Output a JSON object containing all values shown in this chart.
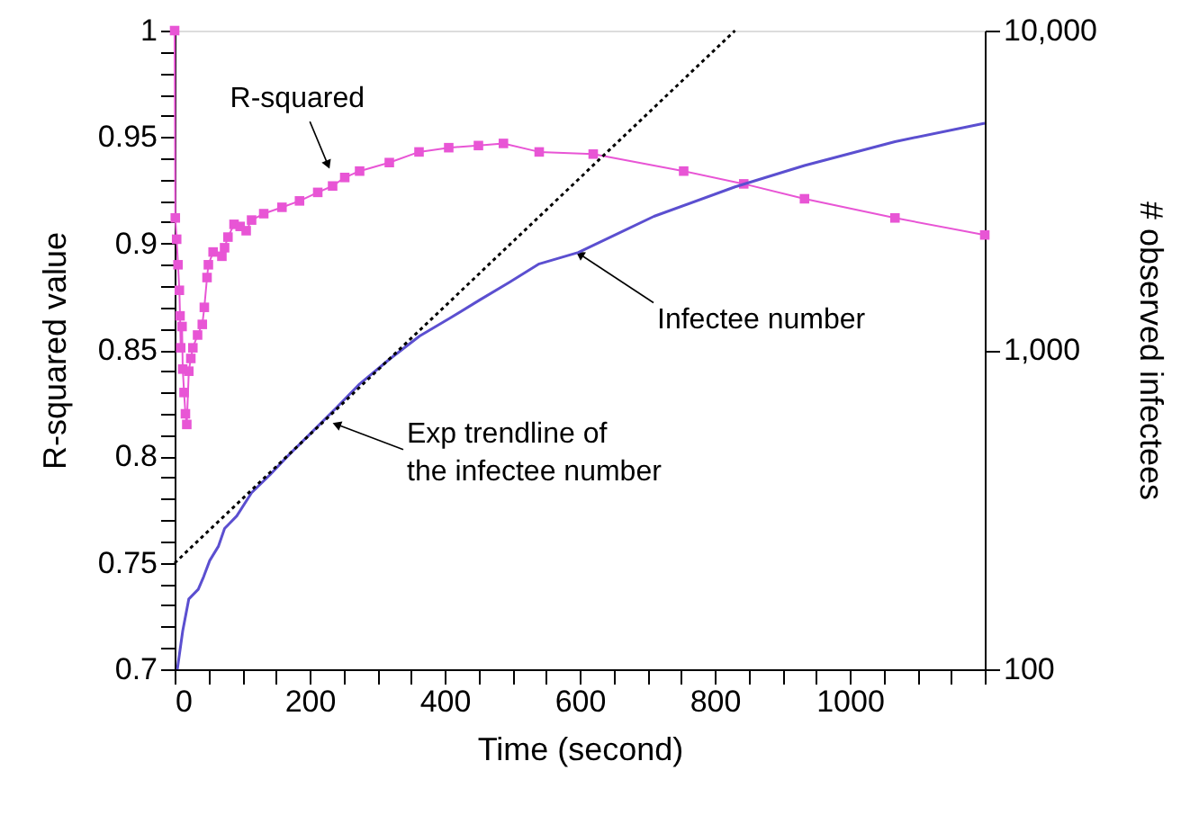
{
  "chart_data": {
    "type": "line",
    "xlabel": "Time (second)",
    "ylabel": "R-squared value",
    "y2label": "# observed infectees",
    "xlim": [
      0,
      1200
    ],
    "xticks": [
      0,
      {
        "value": 50,
        "label": null
      },
      {
        "value": 100,
        "label": null
      },
      {
        "value": 150,
        "label": null
      },
      200,
      {
        "value": 250,
        "label": null
      },
      {
        "value": 300,
        "label": null
      },
      {
        "value": 350,
        "label": null
      },
      400,
      {
        "value": 450,
        "label": null
      },
      {
        "value": 500,
        "label": null
      },
      {
        "value": 550,
        "label": null
      },
      600,
      {
        "value": 650,
        "label": null
      },
      {
        "value": 700,
        "label": null
      },
      {
        "value": 750,
        "label": null
      },
      800,
      {
        "value": 850,
        "label": null
      },
      {
        "value": 900,
        "label": null
      },
      {
        "value": 950,
        "label": null
      },
      1000,
      {
        "value": 1050,
        "label": null
      },
      {
        "value": 1100,
        "label": null
      },
      {
        "value": 1150,
        "label": null
      },
      {
        "value": 1200,
        "label": null
      }
    ],
    "ylim": [
      0.7,
      1
    ],
    "yticks": [
      0.7,
      {
        "value": 0.71,
        "label": null
      },
      {
        "value": 0.72,
        "label": null
      },
      {
        "value": 0.73,
        "label": null
      },
      {
        "value": 0.74,
        "label": null
      },
      0.75,
      {
        "value": 0.76,
        "label": null
      },
      {
        "value": 0.77,
        "label": null
      },
      {
        "value": 0.78,
        "label": null
      },
      {
        "value": 0.79,
        "label": null
      },
      0.8,
      {
        "value": 0.81,
        "label": null
      },
      {
        "value": 0.82,
        "label": null
      },
      {
        "value": 0.83,
        "label": null
      },
      {
        "value": 0.84,
        "label": null
      },
      0.85,
      {
        "value": 0.86,
        "label": null
      },
      {
        "value": 0.87,
        "label": null
      },
      {
        "value": 0.88,
        "label": null
      },
      {
        "value": 0.89,
        "label": null
      },
      0.9,
      {
        "value": 0.91,
        "label": null
      },
      {
        "value": 0.92,
        "label": null
      },
      {
        "value": 0.93,
        "label": null
      },
      {
        "value": 0.94,
        "label": null
      },
      0.95,
      {
        "value": 0.96,
        "label": null
      },
      {
        "value": 0.97,
        "label": null
      },
      {
        "value": 0.98,
        "label": null
      },
      {
        "value": 0.99,
        "label": null
      },
      1
    ],
    "y2lim": [
      100,
      10000
    ],
    "y2ticks": [
      100,
      {
        "value": 1000,
        "label": "1,000"
      },
      {
        "value": 10000,
        "label": "10,000"
      }
    ],
    "log": "y2",
    "grid": false,
    "series": [
      {
        "marker": "square",
        "line_style": "solid",
        "color": "#e855d5",
        "x": [
          0,
          1,
          3,
          5,
          7,
          8,
          9,
          11,
          12,
          14,
          16,
          18,
          21,
          24,
          27,
          34,
          41,
          44,
          48,
          50,
          57,
          70,
          74,
          79,
          88,
          97,
          106,
          114,
          132,
          159,
          185,
          212,
          234,
          252,
          274,
          318,
          362,
          406,
          450,
          487,
          540,
          620,
          754,
          843,
          933,
          1067,
          1200
        ],
        "values": [
          1.0,
          0.912,
          0.902,
          0.89,
          0.878,
          0.866,
          0.851,
          0.861,
          0.841,
          0.83,
          0.82,
          0.815,
          0.84,
          0.846,
          0.851,
          0.857,
          0.862,
          0.87,
          0.884,
          0.89,
          0.896,
          0.894,
          0.898,
          0.903,
          0.909,
          0.908,
          0.906,
          0.911,
          0.914,
          0.917,
          0.92,
          0.924,
          0.927,
          0.931,
          0.934,
          0.938,
          0.943,
          0.945,
          0.946,
          0.947,
          0.943,
          0.942,
          0.934,
          0.928,
          0.921,
          0.912,
          0.904
        ]
      },
      {
        "marker": "none",
        "line_style": "solid",
        "axis": "y2",
        "color": "#5b4fd0",
        "x": [
          4,
          12,
          21,
          35,
          43,
          52,
          65,
          74,
          92,
          114,
          141,
          167,
          203,
          239,
          274,
          318,
          363,
          407,
          451,
          496,
          540,
          598,
          710,
          830,
          933,
          1067,
          1200
        ],
        "values": [
          100,
          132,
          166,
          178,
          195,
          219,
          243,
          276,
          302,
          357,
          406,
          464,
          552,
          657,
          782,
          934,
          1106,
          1255,
          1430,
          1630,
          1860,
          2020,
          2620,
          3240,
          3780,
          4490,
          5130
        ]
      },
      {
        "marker": "none",
        "line_style": "dotted",
        "axis": "y2",
        "color": "#000000",
        "x": [
          0,
          830
        ],
        "values": [
          215,
          10000
        ]
      }
    ],
    "annotations": [
      {
        "text": "R-squared",
        "x": 227,
        "y": 0.937
      },
      {
        "text": "Infectee number",
        "x": 600,
        "y": 0.895
      },
      {
        "text": "Exp trendline of\nthe infectee number",
        "x": 240,
        "y": 0.815
      }
    ]
  }
}
